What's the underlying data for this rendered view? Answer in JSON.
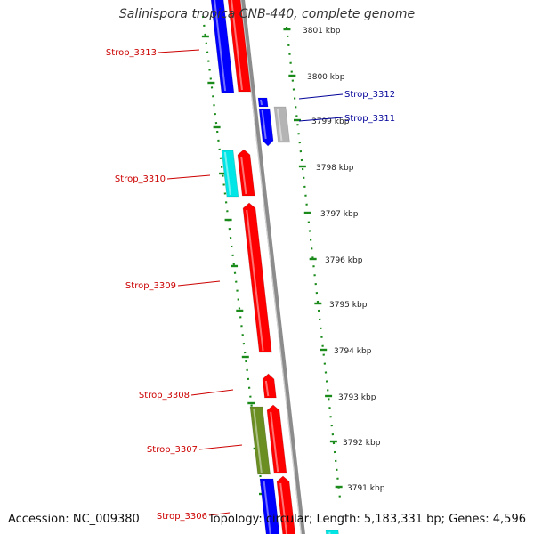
{
  "title": "Salinispora tropica CNB-440, complete genome",
  "footer": {
    "accession_label": "Accession:",
    "accession": "NC_009380",
    "topology": "Topology: circular",
    "length": "Length: 5,183,331 bp",
    "genes": "Genes: 4,596"
  },
  "scale_ticks": [
    {
      "label": "3801 kbp",
      "kbp": 3801
    },
    {
      "label": "3800 kbp",
      "kbp": 3800
    },
    {
      "label": "3799 kbp",
      "kbp": 3799
    },
    {
      "label": "3798 kbp",
      "kbp": 3798
    },
    {
      "label": "3797 kbp",
      "kbp": 3797
    },
    {
      "label": "3796 kbp",
      "kbp": 3796
    },
    {
      "label": "3795 kbp",
      "kbp": 3795
    },
    {
      "label": "3794 kbp",
      "kbp": 3794
    },
    {
      "label": "3793 kbp",
      "kbp": 3793
    },
    {
      "label": "3792 kbp",
      "kbp": 3792
    },
    {
      "label": "3791 kbp",
      "kbp": 3791
    }
  ],
  "labels": [
    {
      "text": "Strop_3313",
      "strand": "forward",
      "color": "#cc0000"
    },
    {
      "text": "Strop_3312",
      "strand": "reverse",
      "color": "#000099"
    },
    {
      "text": "Strop_3311",
      "strand": "reverse",
      "color": "#000099"
    },
    {
      "text": "Strop_3310",
      "strand": "forward",
      "color": "#cc0000"
    },
    {
      "text": "Strop_3309",
      "strand": "forward",
      "color": "#cc0000"
    },
    {
      "text": "Strop_3308",
      "strand": "forward",
      "color": "#cc0000"
    },
    {
      "text": "Strop_3307",
      "strand": "forward",
      "color": "#cc0000"
    },
    {
      "text": "Strop_3306",
      "strand": "forward",
      "color": "#cc0000"
    }
  ],
  "colors": {
    "backbone": "#8c8c8c",
    "ruler": "#1a8a1a",
    "cds_forward": "#ff0000",
    "cds_reverse": "#0000ff",
    "gene_cyan": "#00e5e5",
    "gene_gray": "#b4b4b4",
    "gene_olive": "#6b8e23"
  }
}
